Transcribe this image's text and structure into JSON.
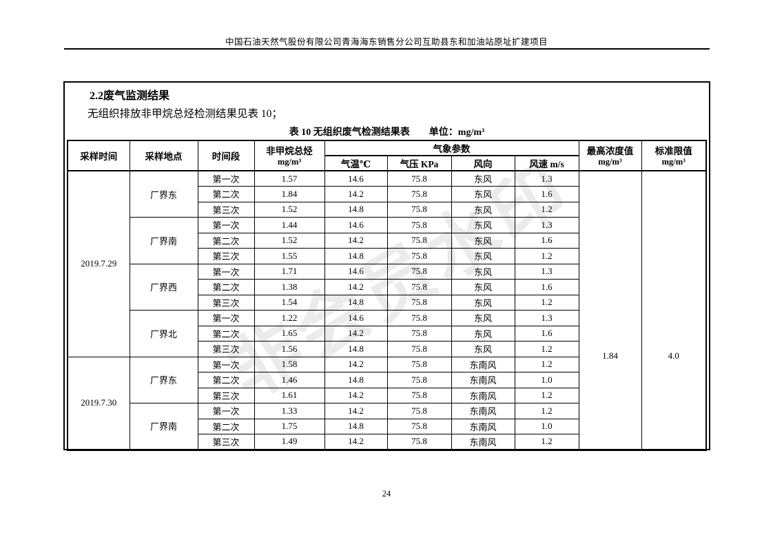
{
  "page": {
    "header_title": "中国石油天然气股份有限公司青海海东销售分公司互助县东和加油站原址扩建项目",
    "watermark": "非会员水印",
    "page_number": "24"
  },
  "section": {
    "heading": "2.2废气监测结果",
    "intro": "无组织排放非甲烷总烃检测结果见表 10；"
  },
  "table": {
    "caption_title": "表 10  无组织废气检测结果表",
    "caption_unit": "单位：mg/m³",
    "headers": {
      "sample_time": "采样时间",
      "sample_location": "采样地点",
      "period": "时间段",
      "nmhc": "非甲烷总烃",
      "nmhc_unit": "mg/m³",
      "weather_group": "气象参数",
      "temp": "气温℃",
      "pressure": "气压 KPa",
      "wind_direction": "风向",
      "wind_speed": "风速 m/s",
      "max_value": "最高浓度值",
      "max_value_unit": "mg/m³",
      "limit": "标准限值",
      "limit_unit": "mg/m³"
    },
    "max_value": "1.84",
    "limit_value": "4.0",
    "groups": [
      {
        "date": "2019.7.29",
        "locations": [
          {
            "name": "厂界东",
            "readings": [
              [
                "第一次",
                "1.57",
                "14.6",
                "75.8",
                "东风",
                "1.3"
              ],
              [
                "第二次",
                "1.84",
                "14.2",
                "75.8",
                "东风",
                "1.6"
              ],
              [
                "第三次",
                "1.52",
                "14.8",
                "75.8",
                "东风",
                "1.2"
              ]
            ]
          },
          {
            "name": "厂界南",
            "readings": [
              [
                "第一次",
                "1.44",
                "14.6",
                "75.8",
                "东风",
                "1.3"
              ],
              [
                "第二次",
                "1.52",
                "14.2",
                "75.8",
                "东风",
                "1.6"
              ],
              [
                "第三次",
                "1.55",
                "14.8",
                "75.8",
                "东风",
                "1.2"
              ]
            ]
          },
          {
            "name": "厂界西",
            "readings": [
              [
                "第一次",
                "1.71",
                "14.6",
                "75.8",
                "东风",
                "1.3"
              ],
              [
                "第二次",
                "1.38",
                "14.2",
                "75.8",
                "东风",
                "1.6"
              ],
              [
                "第三次",
                "1.54",
                "14.8",
                "75.8",
                "东风",
                "1.2"
              ]
            ]
          },
          {
            "name": "厂界北",
            "readings": [
              [
                "第一次",
                "1.22",
                "14.6",
                "75.8",
                "东风",
                "1.3"
              ],
              [
                "第二次",
                "1.65",
                "14.2",
                "75.8",
                "东风",
                "1.6"
              ],
              [
                "第三次",
                "1.56",
                "14.8",
                "75.8",
                "东风",
                "1.2"
              ]
            ]
          }
        ]
      },
      {
        "date": "2019.7.30",
        "locations": [
          {
            "name": "厂界东",
            "readings": [
              [
                "第一次",
                "1.58",
                "14.2",
                "75.8",
                "东南风",
                "1.2"
              ],
              [
                "第二次",
                "1.46",
                "14.8",
                "75.8",
                "东南风",
                "1.0"
              ],
              [
                "第三次",
                "1.61",
                "14.2",
                "75.8",
                "东南风",
                "1.2"
              ]
            ]
          },
          {
            "name": "厂界南",
            "readings": [
              [
                "第一次",
                "1.33",
                "14.2",
                "75.8",
                "东南风",
                "1.2"
              ],
              [
                "第二次",
                "1.75",
                "14.8",
                "75.8",
                "东南风",
                "1.0"
              ],
              [
                "第三次",
                "1.49",
                "14.2",
                "75.8",
                "东南风",
                "1.2"
              ]
            ]
          }
        ]
      }
    ]
  }
}
